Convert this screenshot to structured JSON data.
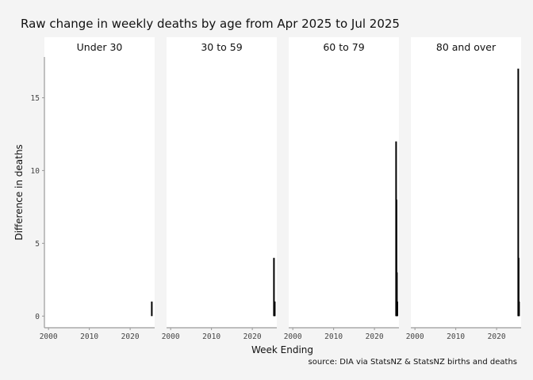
{
  "chart_data": {
    "type": "bar",
    "title": "Raw change in weekly deaths by age from Apr 2025 to Jul 2025",
    "xlabel": "Week Ending",
    "ylabel": "Difference in deaths",
    "caption": "source: DIA via StatsNZ & StatsNZ births and deaths",
    "xlim": [
      1999,
      2026
    ],
    "ylim": [
      -0.8,
      17.8
    ],
    "x_ticks": [
      2000,
      2010,
      2020
    ],
    "y_ticks": [
      0,
      5,
      10,
      15
    ],
    "grid": false,
    "facets": [
      {
        "label": "Under 30",
        "bars": [
          {
            "x": 2025.3,
            "value": 1
          }
        ]
      },
      {
        "label": "30 to 59",
        "bars": [
          {
            "x": 2025.3,
            "value": 4
          },
          {
            "x": 2025.4,
            "value": 1
          },
          {
            "x": 2025.5,
            "value": 1
          }
        ]
      },
      {
        "label": "60 to 79",
        "bars": [
          {
            "x": 2025.3,
            "value": 12
          },
          {
            "x": 2025.4,
            "value": 8
          },
          {
            "x": 2025.5,
            "value": 3
          },
          {
            "x": 2025.6,
            "value": 1
          }
        ]
      },
      {
        "label": "80 and over",
        "bars": [
          {
            "x": 2025.3,
            "value": 17
          },
          {
            "x": 2025.4,
            "value": 4
          },
          {
            "x": 2025.5,
            "value": 1
          }
        ]
      }
    ],
    "bar_color": "#000000",
    "panel_color": "#ffffff",
    "strip_color": "#ffffff",
    "background_color": "#f4f4f4"
  }
}
